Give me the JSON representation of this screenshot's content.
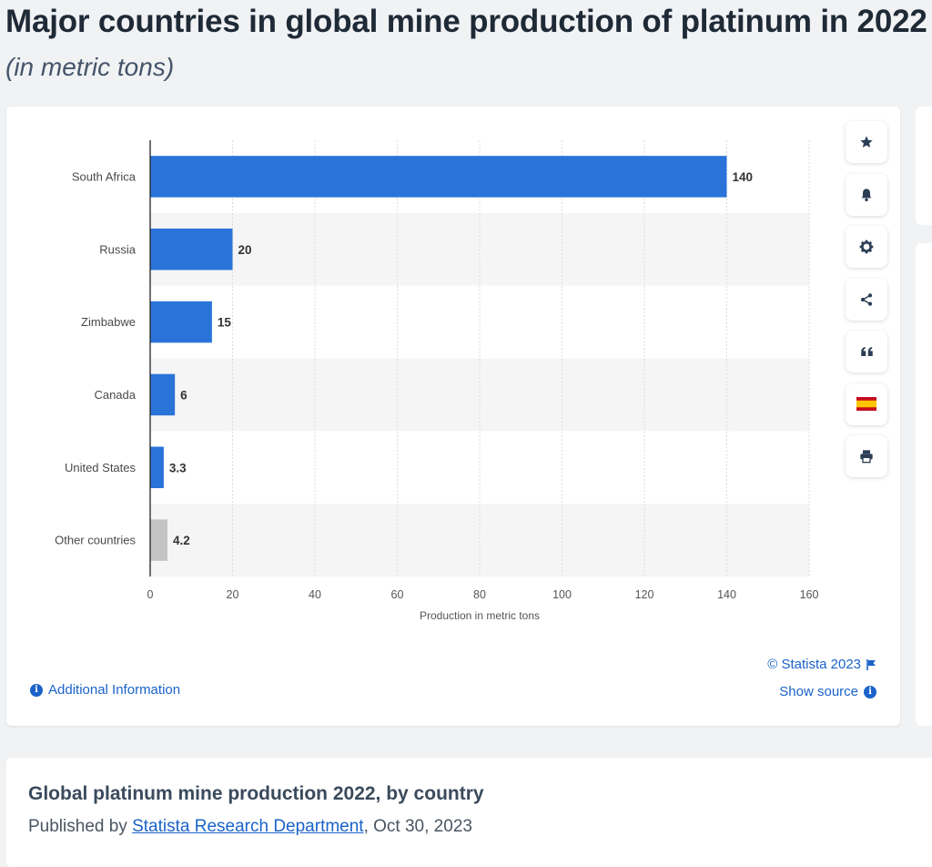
{
  "header": {
    "title": "Major countries in global mine production of platinum in 2022",
    "subtitle": "(in metric tons)"
  },
  "chart_data": {
    "type": "bar",
    "orientation": "horizontal",
    "categories": [
      "South Africa",
      "Russia",
      "Zimbabwe",
      "Canada",
      "United States",
      "Other countries"
    ],
    "values": [
      140,
      20,
      15,
      6,
      3.3,
      4.2
    ],
    "value_labels": [
      "140",
      "20",
      "15",
      "6",
      "3.3",
      "4.2"
    ],
    "bar_colors": [
      "#2a74d9",
      "#2a74d9",
      "#2a74d9",
      "#2a74d9",
      "#2a74d9",
      "#c4c4c4"
    ],
    "xlabel": "Production in metric tons",
    "xlim": [
      0,
      160
    ],
    "xticks": [
      0,
      20,
      40,
      60,
      80,
      100,
      120,
      140,
      160
    ],
    "grid": true
  },
  "toolbar": [
    {
      "icon": "star-icon",
      "label": "favorite"
    },
    {
      "icon": "bell-icon",
      "label": "notification"
    },
    {
      "icon": "gear-icon",
      "label": "settings"
    },
    {
      "icon": "share-icon",
      "label": "share"
    },
    {
      "icon": "quote-icon",
      "label": "cite"
    },
    {
      "icon": "flag-spain-icon",
      "label": "language"
    },
    {
      "icon": "print-icon",
      "label": "print"
    }
  ],
  "footer": {
    "additional_info": "Additional Information",
    "copyright": "© Statista 2023",
    "show_source": "Show source"
  },
  "info": {
    "title": "Global platinum mine production 2022, by country",
    "published_prefix": "Published by ",
    "publisher": "Statista Research Department",
    "date": ", Oct 30, 2023"
  },
  "colors": {
    "accent": "#1a63c9",
    "bar": "#2a74d9",
    "bar_other": "#c4c4c4"
  }
}
